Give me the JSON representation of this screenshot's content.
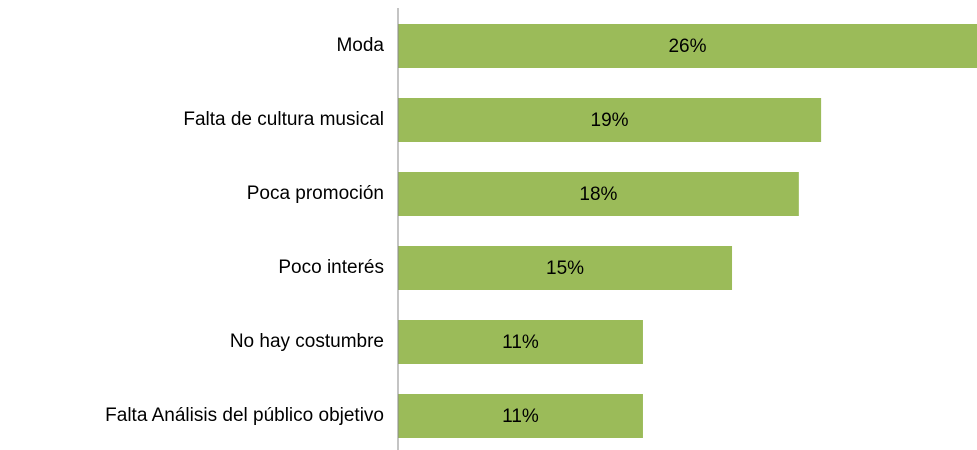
{
  "chart_data": {
    "type": "bar",
    "orientation": "horizontal",
    "categories": [
      "Moda",
      "Falta de cultura musical",
      "Poca promoción",
      "Poco interés",
      "No hay costumbre",
      "Falta Análisis del público objetivo"
    ],
    "values": [
      26,
      19,
      18,
      15,
      11,
      11
    ],
    "value_labels": [
      "26%",
      "19%",
      "18%",
      "15%",
      "11%",
      "11%"
    ],
    "color": "#9bbb59",
    "xlim": [
      0,
      26
    ]
  }
}
